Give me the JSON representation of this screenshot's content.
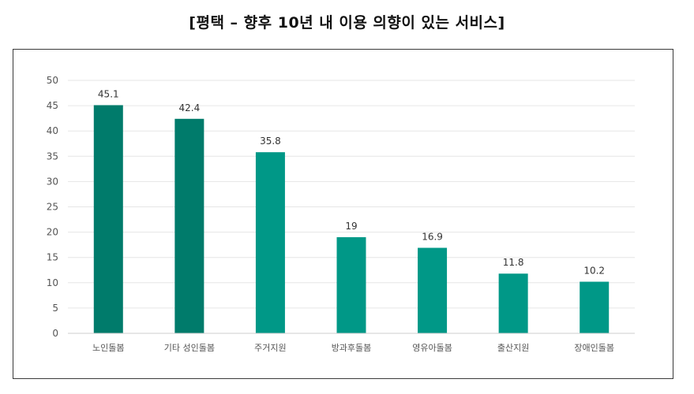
{
  "title": "[평택 – 향후 10년 내 이용 의향이 있는 서비스]",
  "colors": {
    "bar_dark": "#007b6b",
    "bar_light": "#009887",
    "grid": "#e6e6e6",
    "axis_text": "#555555",
    "label_text": "#333333"
  },
  "chart_data": {
    "type": "bar",
    "categories": [
      "노인돌봄",
      "기타 성인돌봄",
      "주거지원",
      "방과후돌봄",
      "영유아돌봄",
      "출산지원",
      "장애인돌봄"
    ],
    "values": [
      45.1,
      42.4,
      35.8,
      19,
      16.9,
      11.8,
      10.2
    ],
    "bar_colors": [
      "#007b6b",
      "#007b6b",
      "#009887",
      "#009887",
      "#009887",
      "#009887",
      "#009887"
    ],
    "data_labels": [
      "45.1",
      "42.4",
      "35.8",
      "19",
      "16.9",
      "11.8",
      "10.2"
    ],
    "ylim": [
      0,
      50
    ],
    "yticks": [
      0,
      5,
      10,
      15,
      20,
      25,
      30,
      35,
      40,
      45,
      50
    ],
    "grid": true,
    "legend": "none"
  }
}
